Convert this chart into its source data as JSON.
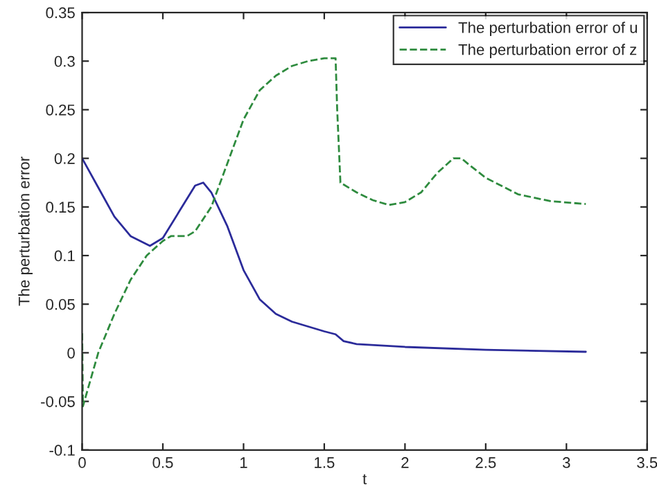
{
  "chart_data": {
    "type": "line",
    "xlabel": "t",
    "ylabel": "The perturbation error",
    "xlim": [
      0,
      3.5
    ],
    "ylim": [
      -0.1,
      0.35
    ],
    "xticks": [
      0,
      0.5,
      1,
      1.5,
      2,
      2.5,
      3,
      3.5
    ],
    "yticks": [
      -0.1,
      -0.05,
      0,
      0.05,
      0.1,
      0.15,
      0.2,
      0.25,
      0.3,
      0.35
    ],
    "grid": false,
    "legend": "top right",
    "series": [
      {
        "name": "The perturbation error of u",
        "color": "#2b2b9a",
        "line_style": "solid",
        "x": [
          0,
          0.1,
          0.2,
          0.3,
          0.42,
          0.5,
          0.6,
          0.7,
          0.75,
          0.8,
          0.9,
          1.0,
          1.1,
          1.2,
          1.3,
          1.4,
          1.5,
          1.57,
          1.62,
          1.7,
          2.0,
          2.5,
          3.12
        ],
        "values": [
          0.2,
          0.17,
          0.14,
          0.12,
          0.11,
          0.118,
          0.145,
          0.172,
          0.175,
          0.165,
          0.13,
          0.085,
          0.055,
          0.04,
          0.032,
          0.027,
          0.022,
          0.019,
          0.012,
          0.009,
          0.006,
          0.003,
          0.001
        ]
      },
      {
        "name": "The perturbation error of z",
        "color": "#2e8b3e",
        "line_style": "dashed",
        "x": [
          0,
          0.005,
          0.1,
          0.2,
          0.3,
          0.4,
          0.5,
          0.55,
          0.65,
          0.7,
          0.8,
          0.9,
          1.0,
          1.1,
          1.2,
          1.3,
          1.4,
          1.5,
          1.57,
          1.58,
          1.6,
          1.7,
          1.8,
          1.9,
          2.0,
          2.1,
          2.2,
          2.3,
          2.35,
          2.4,
          2.5,
          2.7,
          2.9,
          3.12
        ],
        "values": [
          0.02,
          -0.055,
          0.0,
          0.04,
          0.075,
          0.1,
          0.115,
          0.12,
          0.12,
          0.125,
          0.15,
          0.195,
          0.24,
          0.27,
          0.285,
          0.295,
          0.3,
          0.303,
          0.303,
          0.25,
          0.175,
          0.165,
          0.157,
          0.152,
          0.155,
          0.165,
          0.185,
          0.2,
          0.2,
          0.193,
          0.18,
          0.163,
          0.156,
          0.153
        ]
      }
    ]
  }
}
